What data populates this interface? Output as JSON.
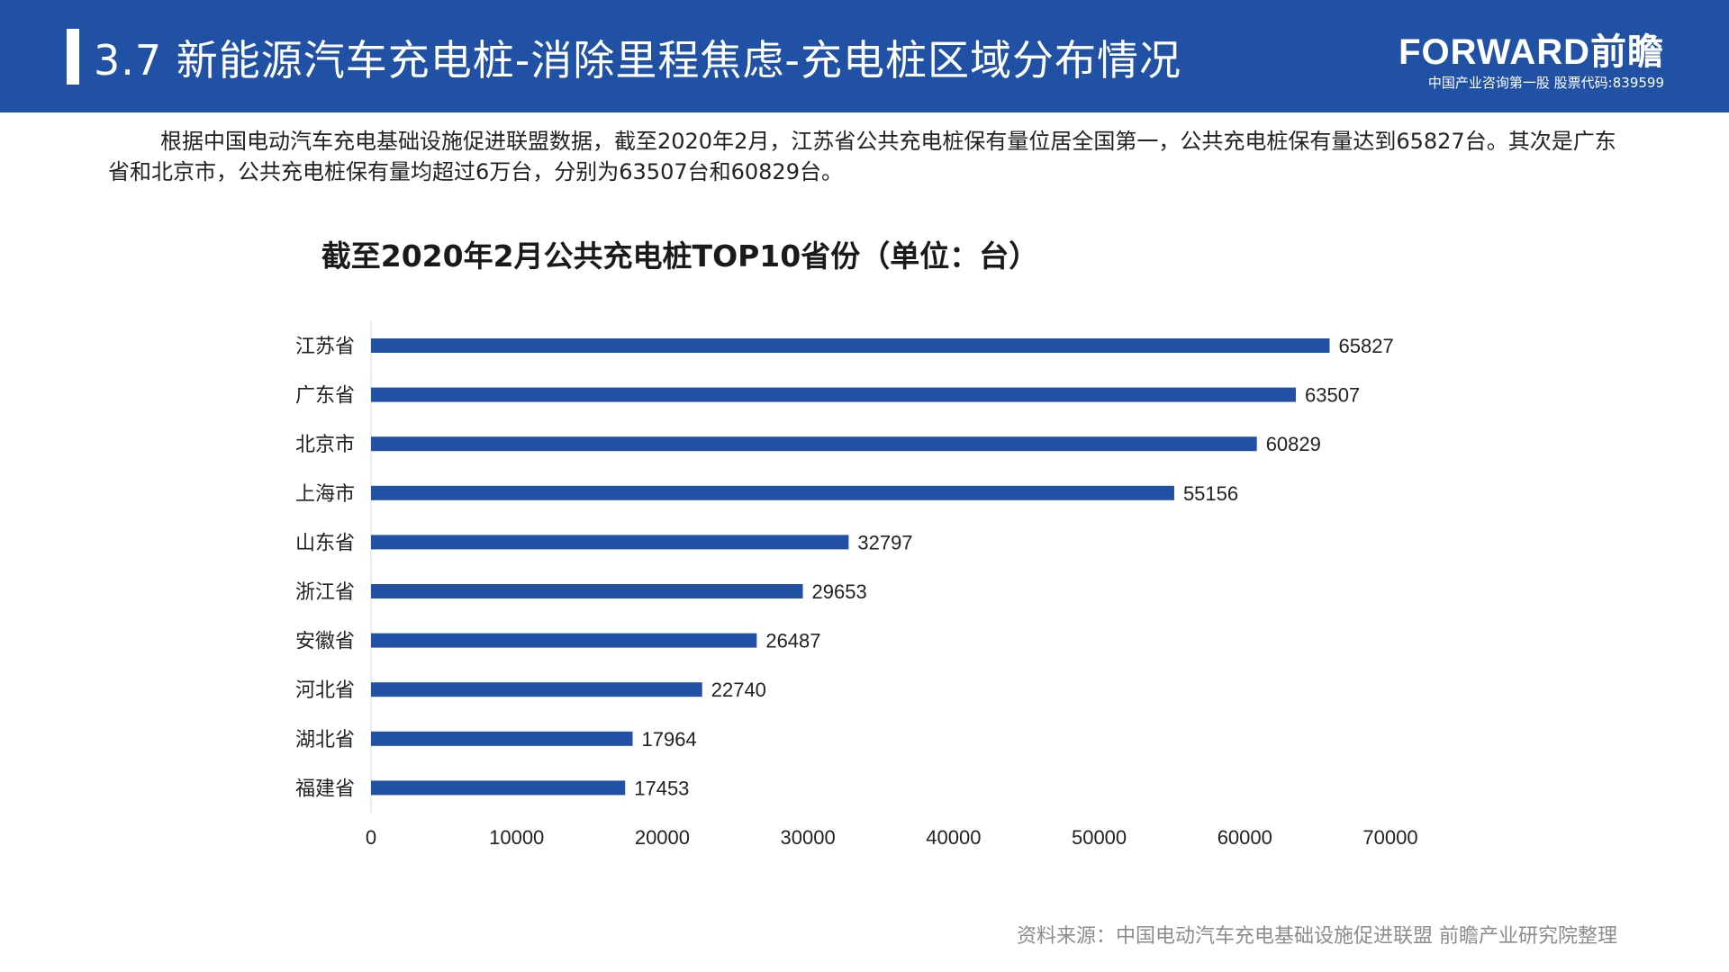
{
  "header": {
    "title": "3.7 新能源汽车充电桩-消除里程焦虑-充电桩区域分布情况",
    "logo_main": "FORWARD前瞻",
    "logo_sub": "中国产业咨询第一股  股票代码:839599"
  },
  "intro_text": "根据中国电动汽车充电基础设施促进联盟数据，截至2020年2月，江苏省公共充电桩保有量位居全国第一，公共充电桩保有量达到65827台。其次是广东省和北京市，公共充电桩保有量均超过6万台，分别为63507台和60829台。",
  "source": "资料来源：中国电动汽车充电基础设施促进联盟 前瞻产业研究院整理",
  "colors": {
    "header_bg": "#2151a4",
    "bar": "#2151a4"
  },
  "chart_data": {
    "type": "bar",
    "orientation": "horizontal",
    "title": "截至2020年2月公共充电桩TOP10省份（单位：台）",
    "categories": [
      "江苏省",
      "广东省",
      "北京市",
      "上海市",
      "山东省",
      "浙江省",
      "安徽省",
      "河北省",
      "湖北省",
      "福建省"
    ],
    "values": [
      65827,
      63507,
      60829,
      55156,
      32797,
      29653,
      26487,
      22740,
      17964,
      17453
    ],
    "xlim": [
      0,
      70000
    ],
    "ticks": [
      0,
      10000,
      20000,
      30000,
      40000,
      50000,
      60000,
      70000
    ],
    "data_labels": true,
    "grid": false,
    "legend": "none"
  }
}
